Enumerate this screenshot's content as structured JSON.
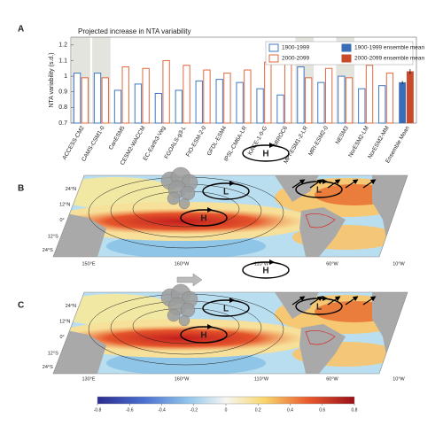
{
  "chart_data": {
    "type": "bar",
    "label": "A",
    "title": "Projected increase in NTA variability",
    "y_label": "NTA variability (s.d.)",
    "categories": [
      "ACCESS-CM2",
      "CAMS-CSM1-0",
      "CanESM5",
      "CESM2-WACCM",
      "EC-Earth3-Veg",
      "FGOALS-g3-L",
      "FIO-ESM-2-0",
      "GFDL-ESM4",
      "IPSL-CM6A-LR",
      "KACE-1-0-G",
      "MIROC6",
      "MPI-ESM1-2-LR",
      "MRI-ESM2-0",
      "NESM3",
      "NorESM2-LM",
      "NorESM2-MM",
      "Ensemble Mean"
    ],
    "series": [
      {
        "name": "1900-1999",
        "color": "#3f78c2",
        "style": "outline",
        "values": [
          1.02,
          1.02,
          0.91,
          0.95,
          0.89,
          0.91,
          0.97,
          0.98,
          0.96,
          0.92,
          0.88,
          1.06,
          0.96,
          1.0,
          0.92,
          0.94,
          null
        ]
      },
      {
        "name": "2000-2099",
        "color": "#e0693f",
        "style": "outline",
        "values": [
          0.99,
          0.99,
          1.06,
          1.05,
          1.1,
          1.07,
          1.04,
          1.02,
          1.04,
          1.09,
          1.11,
          0.99,
          1.05,
          0.99,
          1.07,
          1.02,
          null
        ]
      },
      {
        "name": "1900-1999 ensemble mean",
        "color": "#3a6db5",
        "style": "filled",
        "values": [
          null,
          null,
          null,
          null,
          null,
          null,
          null,
          null,
          null,
          null,
          null,
          null,
          null,
          null,
          null,
          null,
          0.96
        ],
        "errors": [
          null,
          null,
          null,
          null,
          null,
          null,
          null,
          null,
          null,
          null,
          null,
          null,
          null,
          null,
          null,
          null,
          0.01
        ]
      },
      {
        "name": "2000-2099 ensemble mean",
        "color": "#c84a2b",
        "style": "filled",
        "values": [
          null,
          null,
          null,
          null,
          null,
          null,
          null,
          null,
          null,
          null,
          null,
          null,
          null,
          null,
          null,
          null,
          1.03
        ],
        "errors": [
          null,
          null,
          null,
          null,
          null,
          null,
          null,
          null,
          null,
          null,
          null,
          null,
          null,
          null,
          null,
          null,
          0.015
        ]
      }
    ],
    "shaded": [
      true,
      true,
      false,
      false,
      false,
      false,
      false,
      false,
      false,
      false,
      false,
      true,
      false,
      true,
      false,
      false,
      false
    ],
    "shade_color": "#e4e4df",
    "ylim": [
      0.7,
      1.25
    ],
    "yticks": [
      0.7,
      0.8,
      0.9,
      1,
      1.1,
      1.2
    ],
    "legend": "upper right"
  },
  "maps": [
    {
      "label": "B",
      "lat_labels": [
        "24°N",
        "12°N",
        "0°",
        "12°S",
        "24°S"
      ],
      "lon_labels": [
        "150°E",
        "160°W",
        "110°W",
        "60°W",
        "10°W"
      ],
      "centers": [
        "H",
        "L",
        "H",
        "L"
      ]
    },
    {
      "label": "C",
      "lat_labels": [
        "24°N",
        "12°N",
        "0°",
        "12°S",
        "24°S"
      ],
      "lon_labels": [
        "130°E",
        "160°W",
        "110°W",
        "60°W",
        "10°W"
      ],
      "centers": [
        "H",
        "L",
        "H",
        "L"
      ]
    }
  ],
  "colorbar": {
    "lim": [
      -0.8,
      0.8
    ],
    "ticks": [
      -0.8,
      -0.6,
      -0.4,
      -0.2,
      0,
      0.2,
      0.4,
      0.6,
      0.8
    ]
  }
}
